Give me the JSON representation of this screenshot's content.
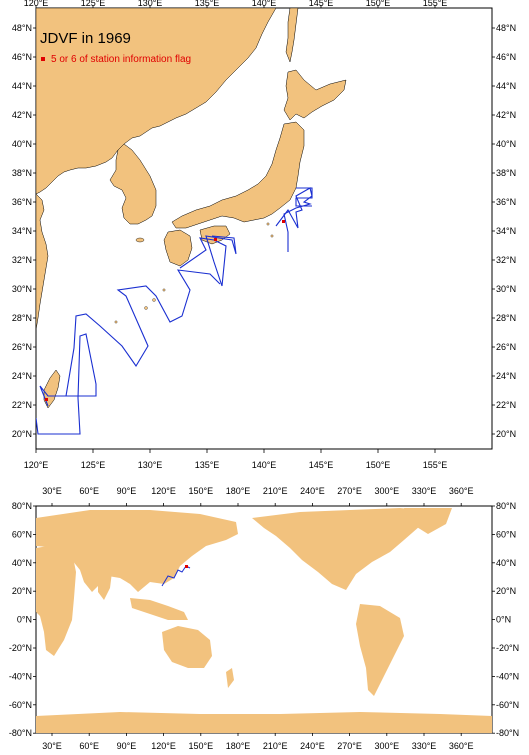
{
  "upper_map": {
    "title": "JDVF in 1969",
    "legend": {
      "marker_color": "#e00000",
      "label": "5 or 6 of station information flag"
    },
    "lon_labels": [
      "120°E",
      "125°E",
      "130°E",
      "135°E",
      "140°E",
      "145°E",
      "150°E",
      "155°E"
    ],
    "lat_labels_left": [
      "20°N",
      "22°N",
      "24°N",
      "26°N",
      "28°N",
      "30°N",
      "32°N",
      "34°N",
      "36°N",
      "38°N",
      "40°N",
      "42°N",
      "44°N",
      "46°N",
      "48°N"
    ],
    "lat_labels_right": [
      "20°N",
      "22°N",
      "24°N",
      "26°N",
      "28°N",
      "30°N",
      "32°N",
      "34°N",
      "36°N",
      "38°N",
      "40°N",
      "42°N",
      "44°N",
      "46°N",
      "48°N"
    ]
  },
  "lower_map": {
    "lon_labels": [
      "30°E",
      "60°E",
      "90°E",
      "120°E",
      "150°E",
      "180°E",
      "210°E",
      "240°E",
      "270°E",
      "300°E",
      "330°E",
      "360°E"
    ],
    "lat_labels_left": [
      "80°N",
      "60°N",
      "40°N",
      "20°N",
      "0°N",
      "-20°N",
      "-40°N",
      "-60°N",
      "-80°N"
    ],
    "lat_labels_right": [
      "80°N",
      "60°N",
      "40°N",
      "20°N",
      "0°N",
      "-20°N",
      "-40°N",
      "-60°N",
      "-80°N"
    ]
  },
  "colors": {
    "land": "#f2c27e",
    "track": "#1a2fd1",
    "flag": "#e00000",
    "frame": "#000000"
  }
}
